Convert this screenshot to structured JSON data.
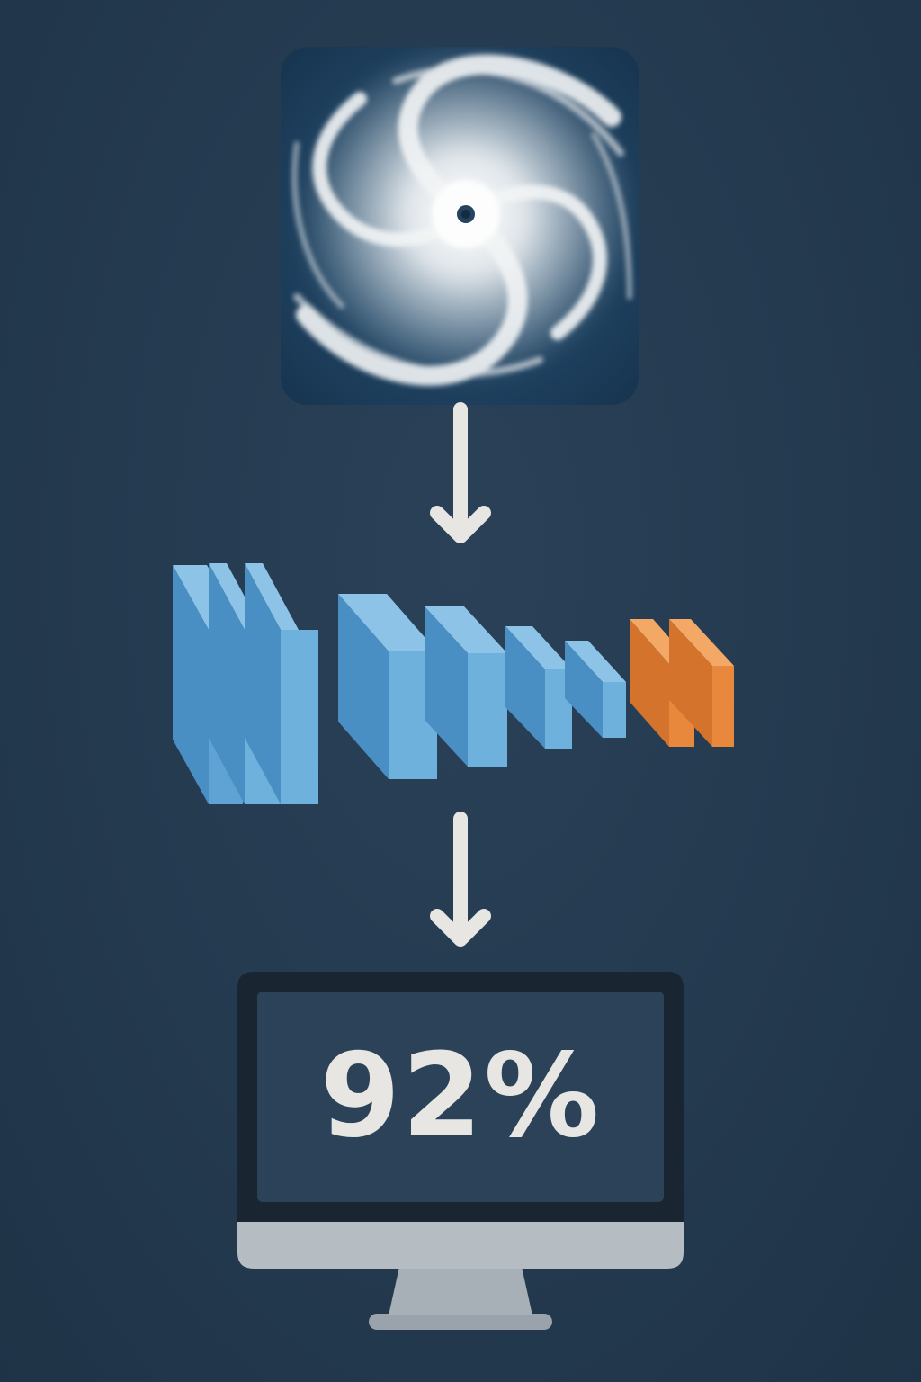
{
  "input_image": {
    "subject": "hurricane-satellite-photo",
    "colors": {
      "ocean": "#1d3f5e",
      "cloud": "#e9edf0"
    }
  },
  "network": {
    "layer_colors": {
      "conv": "#5fa3d4",
      "conv_side": "#4a8fc4",
      "conv_top": "#8cc3e6",
      "dense": "#e8883c",
      "dense_side": "#d4742c",
      "dense_top": "#f4a866"
    }
  },
  "output": {
    "value_text": "92%"
  },
  "colors": {
    "background": "#243a4f",
    "arrow": "#e8e6e2",
    "monitor_bezel": "#1a2532",
    "monitor_screen": "#2b4259",
    "monitor_chin": "#b5bcc2",
    "monitor_stand": "#9aa3ab"
  }
}
